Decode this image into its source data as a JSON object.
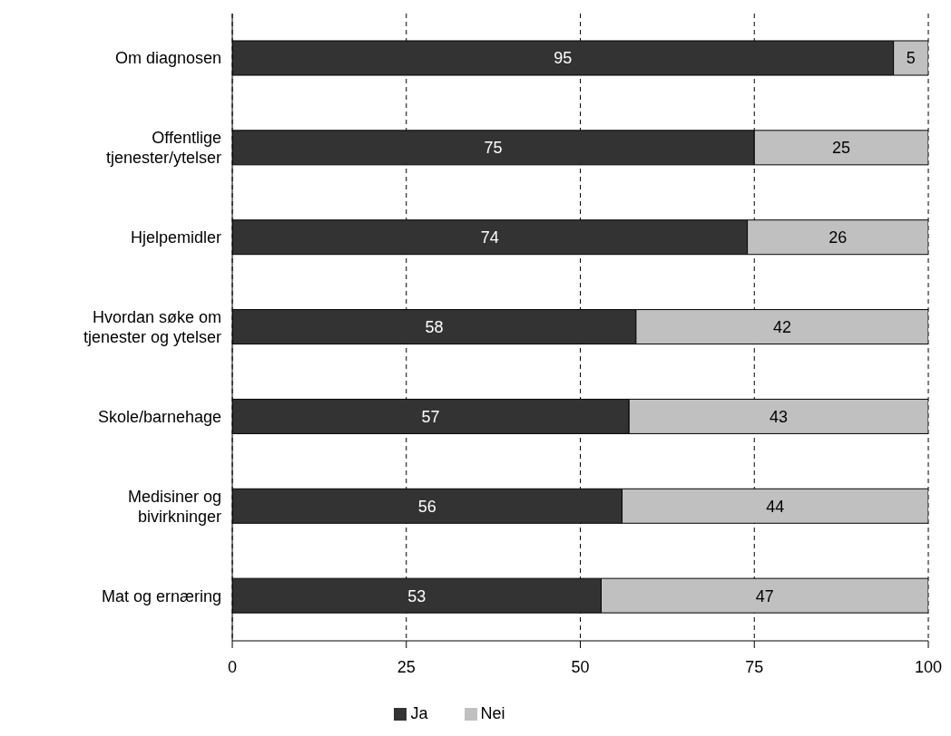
{
  "chart_data": {
    "type": "bar",
    "orientation": "horizontal",
    "stacked": true,
    "categories": [
      "Om diagnosen",
      "Offentlige tjenester/ytelser",
      "Hjelpemidler",
      "Hvordan søke om tjenester og ytelser",
      "Skole/barnehage",
      "Medisiner og bivirkninger",
      "Mat og ernæring"
    ],
    "series": [
      {
        "name": "Ja",
        "color": "#333333",
        "values": [
          95,
          75,
          74,
          58,
          57,
          56,
          53
        ]
      },
      {
        "name": "Nei",
        "color": "#c0c0c0",
        "values": [
          5,
          25,
          26,
          42,
          43,
          44,
          47
        ]
      }
    ],
    "xlim": [
      0,
      100
    ],
    "xticks": [
      0,
      25,
      50,
      75,
      100
    ],
    "grid": "x",
    "legend": "bottom",
    "data_labels": true
  }
}
